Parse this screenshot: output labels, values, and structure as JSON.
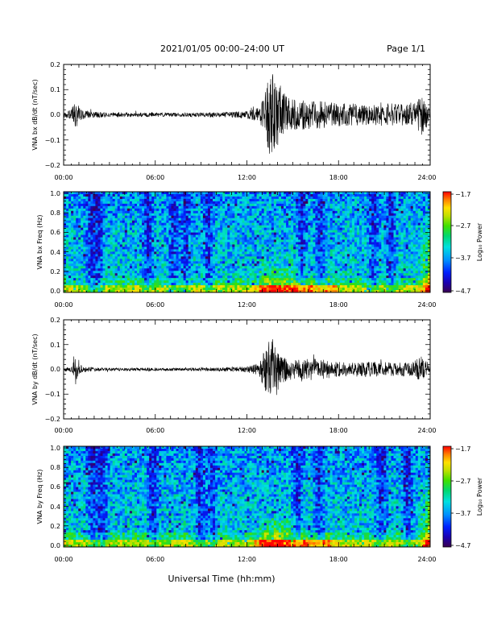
{
  "header": {
    "title": "2021/01/05  00:00–24:00 UT",
    "page": "Page 1/1"
  },
  "xlabel": "Universal Time (hh:mm)",
  "colors": {
    "trace": "#000000",
    "colormap": [
      "#3a0050",
      "#1a00b4",
      "#0020ff",
      "#0090ff",
      "#00e0e0",
      "#00d870",
      "#40e000",
      "#c0e000",
      "#ffe000",
      "#ff8000",
      "#ff0000"
    ]
  },
  "chart_data": [
    {
      "type": "line",
      "name": "bx-trace",
      "ylabel": "VNA bx dB/dt (nT/sec)",
      "xlim": [
        0,
        24
      ],
      "ylim": [
        -0.2,
        0.2
      ],
      "xticks": [
        "00:00",
        "06:00",
        "12:00",
        "18:00",
        "24:00"
      ],
      "yticks": [
        "−0.2",
        "−0.1",
        "0.0",
        "0.1",
        "0.2"
      ],
      "envelope": {
        "hours": [
          0,
          0.5,
          0.8,
          1.2,
          2,
          3,
          4,
          5,
          6,
          8,
          10,
          11,
          12,
          12.8,
          13.3,
          13.7,
          14,
          14.5,
          15,
          16,
          17,
          18,
          19,
          20,
          21,
          22,
          22.8,
          23.1,
          23.4,
          23.7,
          24
        ],
        "amplitude": [
          0.01,
          0.02,
          0.06,
          0.02,
          0.013,
          0.01,
          0.009,
          0.009,
          0.008,
          0.008,
          0.01,
          0.012,
          0.015,
          0.03,
          0.12,
          0.2,
          0.15,
          0.08,
          0.06,
          0.06,
          0.055,
          0.045,
          0.045,
          0.04,
          0.045,
          0.045,
          0.04,
          0.05,
          0.09,
          0.06,
          0.02
        ]
      }
    },
    {
      "type": "heatmap",
      "name": "bx-spectrogram",
      "ylabel": "VNA bx Freq (Hz)",
      "xlim": [
        0,
        24
      ],
      "ylim": [
        0.0,
        1.0
      ],
      "xticks": [
        "00:00",
        "06:00",
        "12:00",
        "18:00",
        "24:00"
      ],
      "yticks": [
        "0.0",
        "0.2",
        "0.4",
        "0.6",
        "0.8",
        "1.0"
      ],
      "colorbar": {
        "label": "Log₁₀ Power",
        "min": -4.7,
        "max": -1.7,
        "ticks": [
          "−1.7",
          "−2.7",
          "−3.7",
          "−4.7"
        ]
      }
    },
    {
      "type": "line",
      "name": "by-trace",
      "ylabel": "VNA by dB/dt (nT/sec)",
      "xlim": [
        0,
        24
      ],
      "ylim": [
        -0.2,
        0.2
      ],
      "xticks": [
        "00:00",
        "06:00",
        "12:00",
        "18:00",
        "24:00"
      ],
      "yticks": [
        "−0.2",
        "−0.1",
        "0.0",
        "0.1",
        "0.2"
      ],
      "envelope": {
        "hours": [
          0,
          0.5,
          0.8,
          1.2,
          2,
          3,
          4,
          5,
          6,
          8,
          10,
          11,
          12,
          12.8,
          13.3,
          13.7,
          14,
          14.5,
          15,
          16,
          17,
          18,
          19,
          20,
          21,
          22,
          22.8,
          23.1,
          23.4,
          23.7,
          24
        ],
        "amplitude": [
          0.008,
          0.012,
          0.05,
          0.012,
          0.008,
          0.006,
          0.006,
          0.006,
          0.006,
          0.006,
          0.008,
          0.01,
          0.012,
          0.025,
          0.1,
          0.15,
          0.1,
          0.05,
          0.04,
          0.045,
          0.04,
          0.03,
          0.03,
          0.03,
          0.03,
          0.03,
          0.03,
          0.04,
          0.06,
          0.04,
          0.02
        ]
      }
    },
    {
      "type": "heatmap",
      "name": "by-spectrogram",
      "ylabel": "VNA by Freq (Hz)",
      "xlim": [
        0,
        24
      ],
      "ylim": [
        0.0,
        1.0
      ],
      "xticks": [
        "00:00",
        "06:00",
        "12:00",
        "18:00",
        "24:00"
      ],
      "yticks": [
        "0.0",
        "0.2",
        "0.4",
        "0.6",
        "0.8",
        "1.0"
      ],
      "colorbar": {
        "label": "Log₁₀ Power",
        "min": -4.7,
        "max": -1.7,
        "ticks": [
          "−1.7",
          "−2.7",
          "−3.7",
          "−4.7"
        ]
      }
    }
  ]
}
